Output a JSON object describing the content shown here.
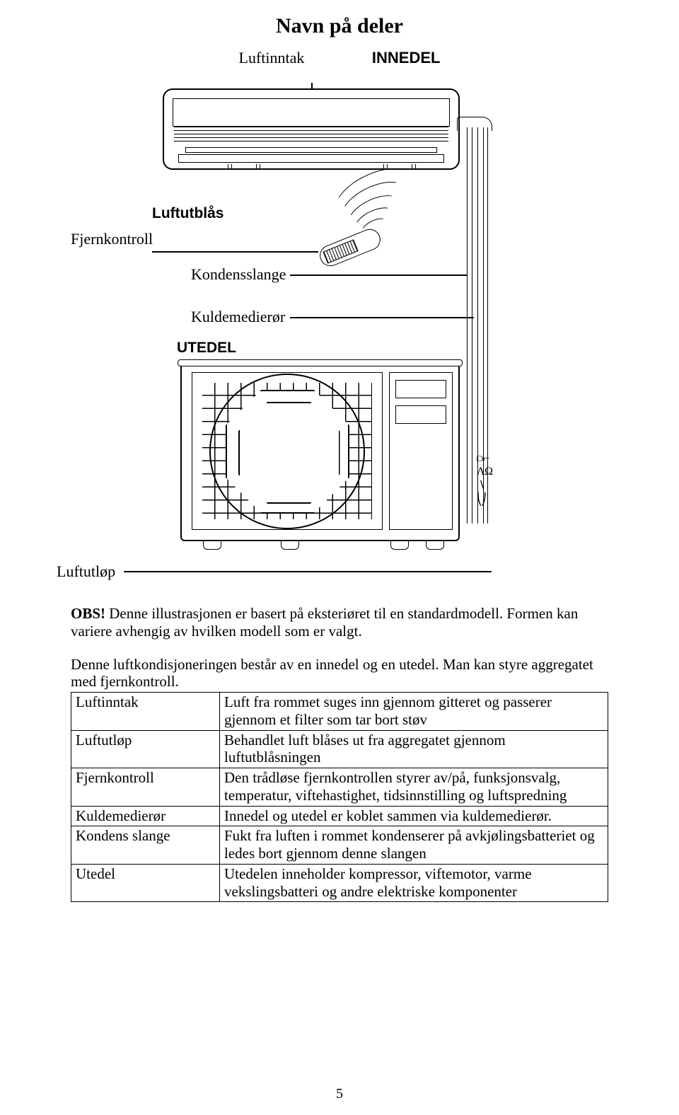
{
  "title": "Navn på deler",
  "labels": {
    "luftinntak": "Luftinntak",
    "innedel": "INNEDEL",
    "luftutblas": "Luftutblås",
    "fjernkontroll": "Fjernkontroll",
    "kondensslange": "Kondensslange",
    "kuldemedieror": "Kuldemedierør",
    "utedel": "UTEDEL",
    "luftutlop": "Luftutløp"
  },
  "obs": {
    "lead": "OBS!",
    "line1_rest": " Denne illustrasjonen er basert på eksteriøret til en standardmodell. Formen kan variere avhengig av hvilken modell som er valgt."
  },
  "para2": "Denne luftkondisjoneringen består av en innedel og en utedel. Man kan styre aggregatet med fjernkontroll.",
  "table": [
    {
      "term": "Luftinntak",
      "def": "Luft fra rommet suges inn gjennom gitteret og passerer gjennom et filter som tar bort støv"
    },
    {
      "term": "Luftutløp",
      "def": "Behandlet luft blåses ut fra aggregatet gjennom luftutblåsningen"
    },
    {
      "term": "Fjernkontroll",
      "def": "Den trådløse fjernkontrollen styrer av/på, funksjonsvalg, temperatur, viftehastighet, tidsinnstilling og luftspredning"
    },
    {
      "term": "Kuldemedierør",
      "def": "Innedel og utedel er koblet sammen via kuldemedierør."
    },
    {
      "term": "Kondens slange",
      "def": "Fukt fra luften i rommet kondenserer på avkjølingsbatteriet og ledes bort gjennom denne slangen"
    },
    {
      "term": "Utedel",
      "def": "Utedelen inneholder kompressor, viftemotor, varme vekslingsbatteri og andre elektriske komponenter"
    }
  ],
  "page_number": "5"
}
